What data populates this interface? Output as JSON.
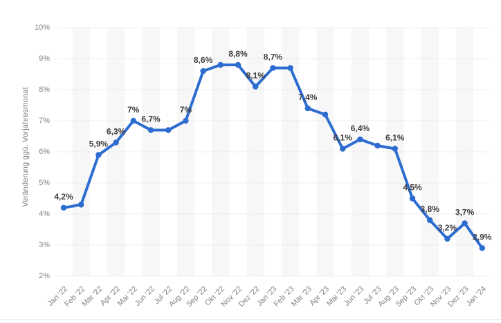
{
  "chart_data": {
    "type": "line",
    "title": "",
    "xlabel": "",
    "ylabel": "Veränderung ggü. Vorjahresmonat",
    "ylim": [
      2,
      10
    ],
    "yticks": [
      10,
      9,
      8,
      7,
      6,
      5,
      4,
      3,
      2
    ],
    "ytick_labels": [
      "10%",
      "9%",
      "8%",
      "7%",
      "6%",
      "5%",
      "4%",
      "3%",
      "2%"
    ],
    "grid": "horizontal-dotted",
    "legend_position": "none",
    "background_bands": "alternating-columns",
    "categories": [
      "Jan '22",
      "Feb '22",
      "Mär '22",
      "Apr '22",
      "Mai '22",
      "Jun '22",
      "Jul '22",
      "Aug '22",
      "Sep '22",
      "Okt '22",
      "Nov '22",
      "Dez '22",
      "Jan '23",
      "Feb '23",
      "Mär '23",
      "Apr '23",
      "Mai '23",
      "Jun '23",
      "Jul '23",
      "Aug '23",
      "Sep '23",
      "Okt '23",
      "Nov '23",
      "Dez '23",
      "Jan '24"
    ],
    "values": [
      4.2,
      4.3,
      5.9,
      6.3,
      7.0,
      6.7,
      6.7,
      7.0,
      8.6,
      8.8,
      8.8,
      8.1,
      8.7,
      8.7,
      7.4,
      7.2,
      6.1,
      6.4,
      6.2,
      6.1,
      4.5,
      3.8,
      3.2,
      3.7,
      2.9
    ],
    "point_labels": [
      "4,2%",
      "",
      "5,9%",
      "6,3%",
      "7%",
      "6,7%",
      "",
      "7%",
      "8,6%",
      "",
      "8,8%",
      "8,1%",
      "8,7%",
      "",
      "7,4%",
      "",
      "6,1%",
      "6,4%",
      "",
      "6,1%",
      "4,5%",
      "3,8%",
      "3,2%",
      "3,7%",
      "2,9%"
    ],
    "colors": {
      "line": "#2d6cd0",
      "marker": "#2d6cd0",
      "point_label": "#3d3d3d",
      "tick_label": "#818181",
      "axis_title": "#7a7a7a",
      "band": "#f7f7f7",
      "gridline": "#d2d2d2",
      "divider": "#e3e3e3"
    }
  }
}
